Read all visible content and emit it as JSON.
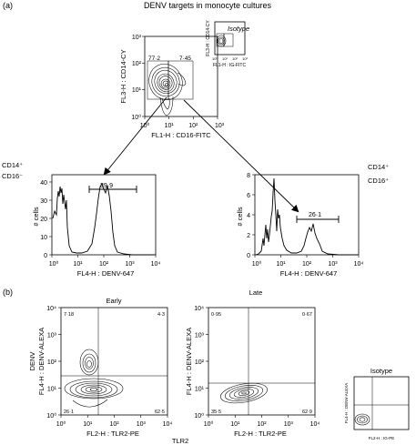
{
  "panel_a": {
    "label": "(a)",
    "title": "DENV targets in monocyte cultures",
    "main_plot": {
      "y_label": "FL3-H : CD14-CY",
      "x_label": "FL1-H : CD16-FITC",
      "ticks": [
        "10⁰",
        "10¹",
        "10²",
        "10³"
      ],
      "gate_left": "77·2",
      "gate_right": "7·45"
    },
    "isotype_plot": {
      "title": "Isotype",
      "y_label": "FL3-H : CD14-CY",
      "x_label": "FL1-H : IG-FITC",
      "ticks": [
        "10⁰",
        "10¹",
        "10²",
        "10³"
      ]
    },
    "hist_left": {
      "pop_label_1": "CD14⁺",
      "pop_label_2": "CD16⁻",
      "y_label": "# cells",
      "x_label": "FL4-H : DENV-647",
      "y_ticks": [
        "0",
        "10",
        "20",
        "30",
        "40"
      ],
      "x_ticks": [
        "10⁰",
        "10¹",
        "10²",
        "10³",
        "10⁴"
      ],
      "gate_value": "39·9"
    },
    "hist_right": {
      "pop_label_1": "CD14⁺",
      "pop_label_2": "CD16⁺",
      "y_label": "# cells",
      "x_label": "FL4-H : DENV-647",
      "y_ticks": [
        "0",
        "2",
        "4",
        "6",
        "8"
      ],
      "x_ticks": [
        "10⁰",
        "10¹",
        "10²",
        "10³",
        "10⁴"
      ],
      "gate_value": "26·1"
    }
  },
  "panel_b": {
    "label": "(b)",
    "shared_x_label": "TLR2",
    "early": {
      "title": "Early",
      "y_label_outer": "DENV",
      "y_label": "FL4-H : DENV-ALEXA",
      "x_label": "FL2-H : TLR2-PE",
      "ticks": [
        "10⁰",
        "10¹",
        "10²",
        "10³",
        "10⁴"
      ],
      "q_ul": "7·18",
      "q_ur": "4·3",
      "q_ll": "26·1",
      "q_lr": "62·5"
    },
    "late": {
      "title": "Late",
      "y_label": "FL4-H : DENV-ALEXA",
      "x_label": "FL2-H : TLR2-PE",
      "ticks": [
        "10⁰",
        "10¹",
        "10²",
        "10³",
        "10⁴"
      ],
      "q_ul": "0·95",
      "q_ur": "0·67",
      "q_ll": "35·5",
      "q_lr": "62·9"
    },
    "isotype": {
      "title": "Isotype",
      "y_label": "FL4-H : DENV-ALEXA",
      "x_label": "FL2-H : IG-PE"
    }
  }
}
